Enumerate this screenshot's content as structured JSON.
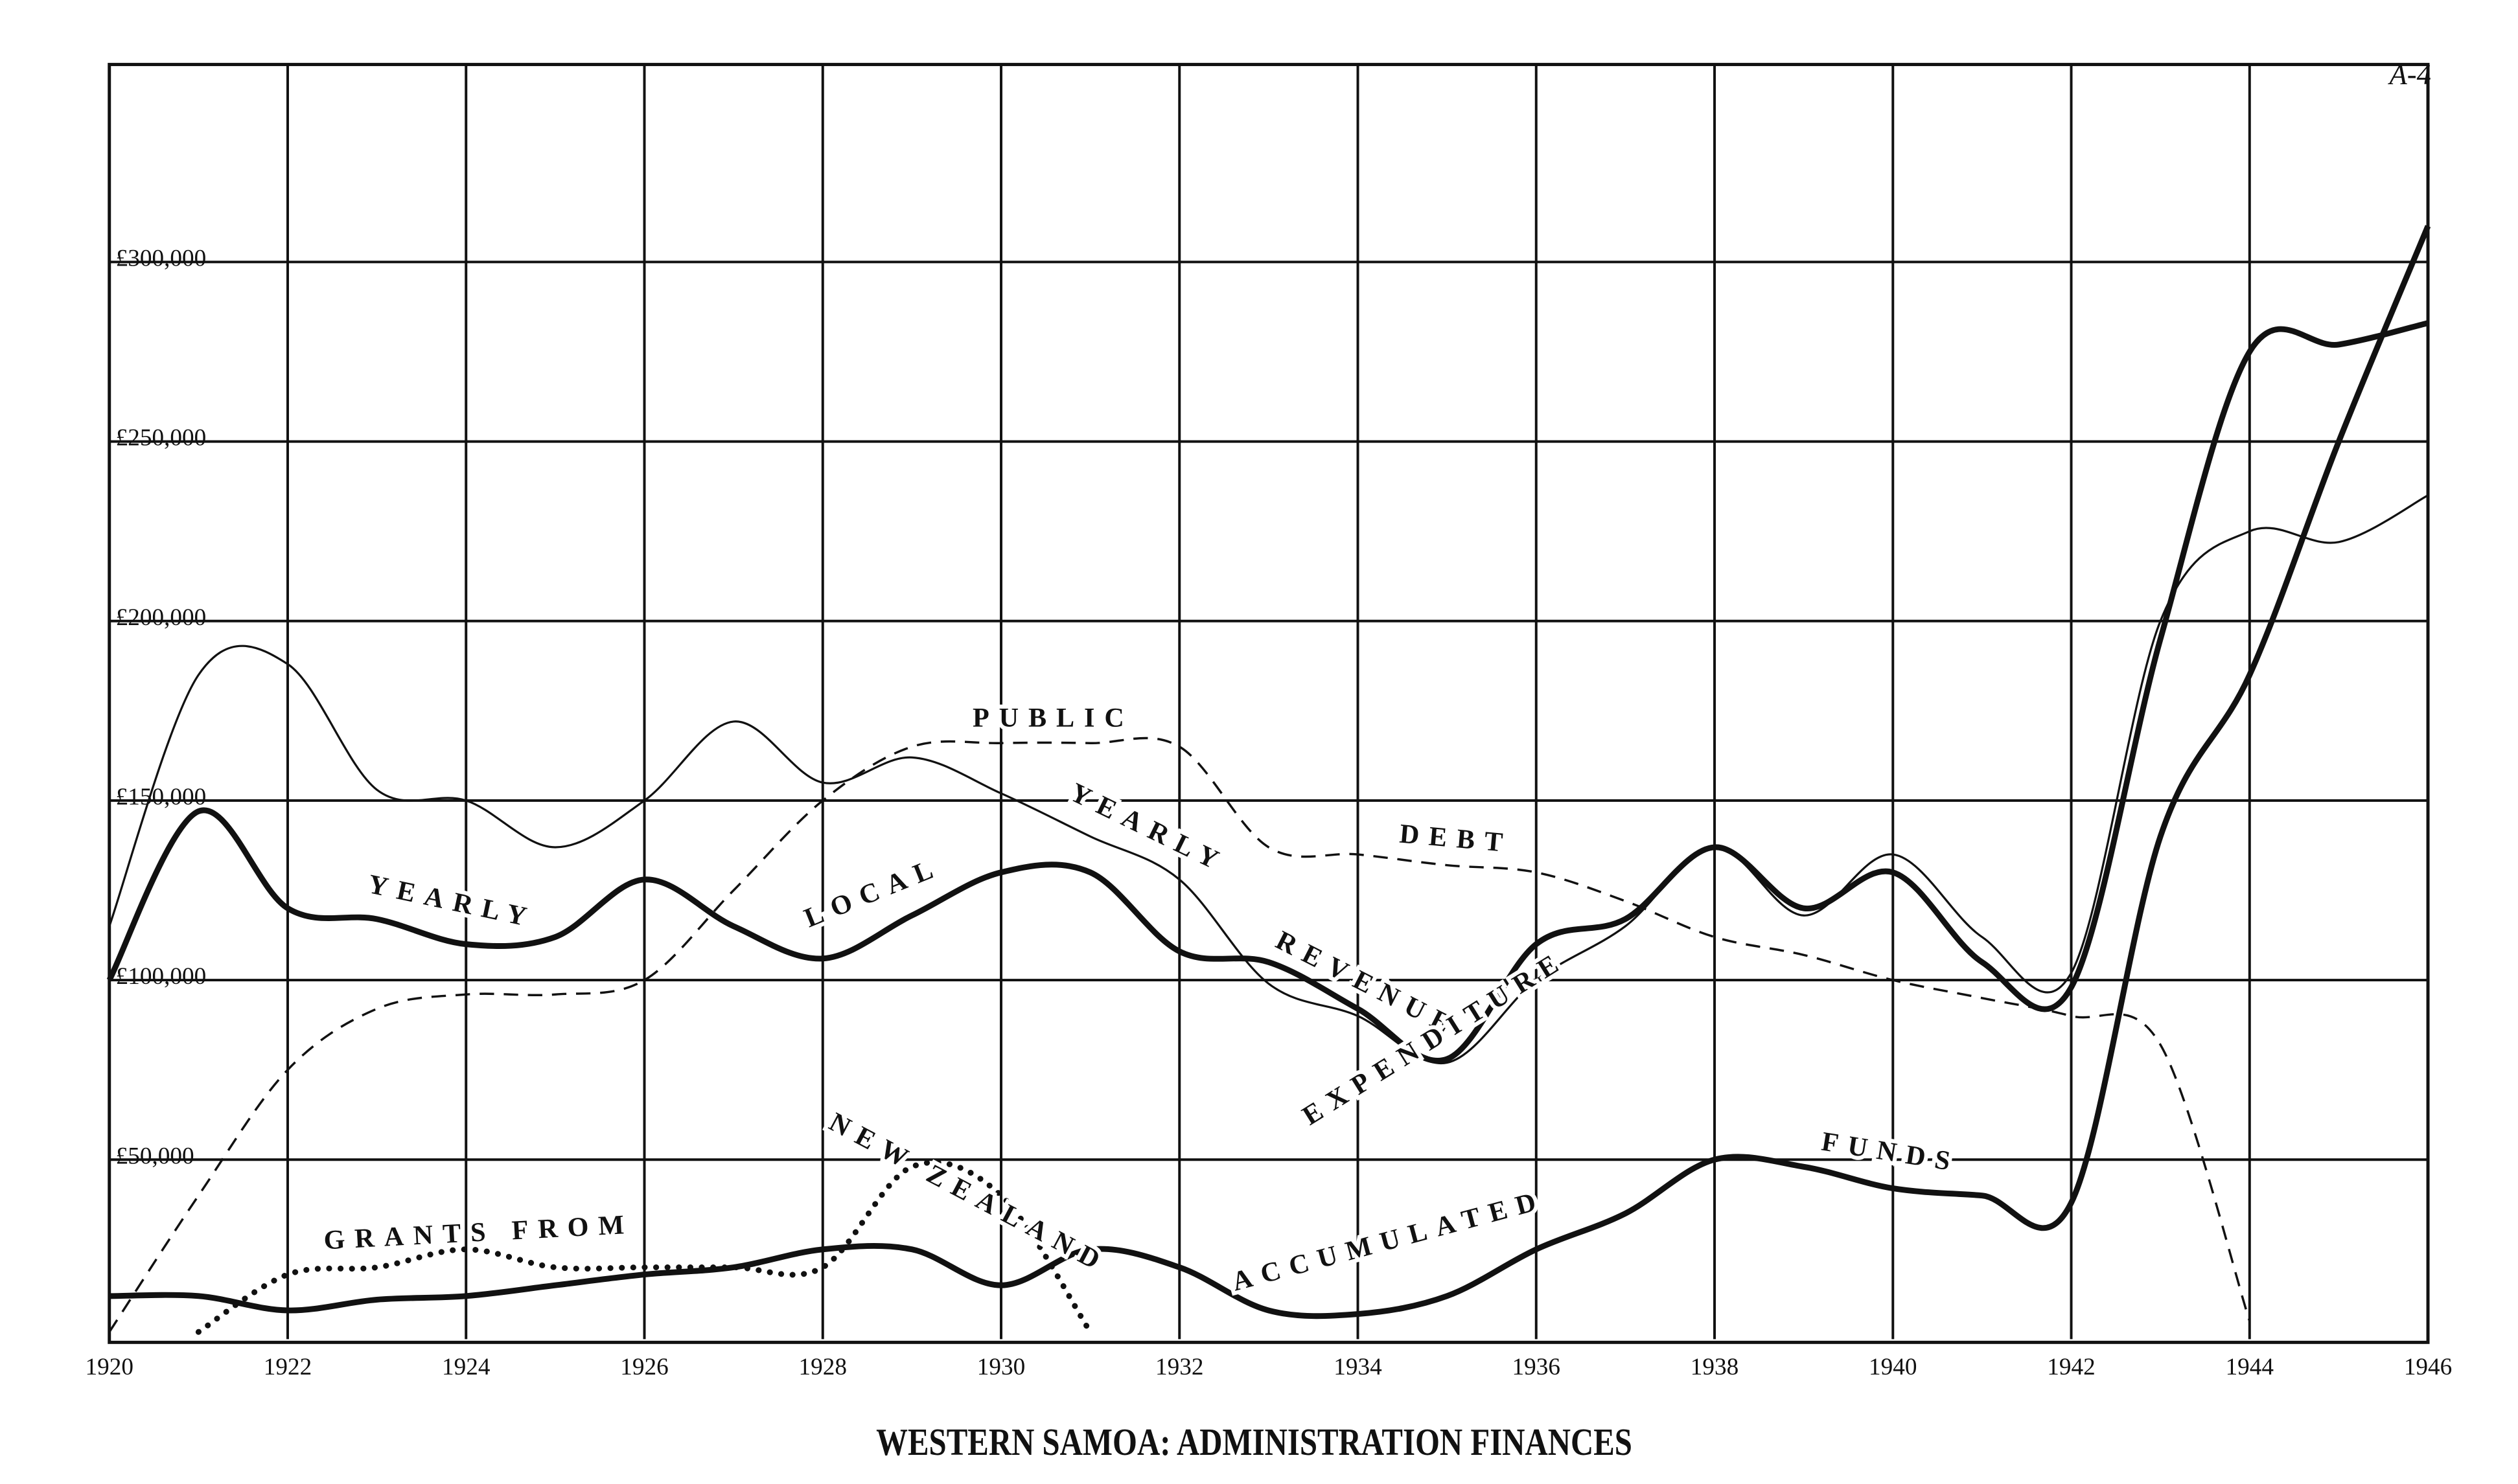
{
  "page_label": "A-4",
  "chart_data": {
    "type": "line",
    "title": "WESTERN SAMOA: ADMINISTRATION FINANCES",
    "x": [
      1920,
      1921,
      1922,
      1923,
      1924,
      1925,
      1926,
      1927,
      1928,
      1929,
      1930,
      1931,
      1932,
      1933,
      1934,
      1935,
      1936,
      1937,
      1938,
      1939,
      1940,
      1941,
      1942,
      1943,
      1944,
      1945,
      1946
    ],
    "xlim": [
      1920,
      1946
    ],
    "xticks": [
      1920,
      1922,
      1924,
      1926,
      1928,
      1930,
      1932,
      1934,
      1936,
      1938,
      1940,
      1942,
      1944,
      1946
    ],
    "ylim": [
      0,
      355000
    ],
    "yticks": [
      {
        "value": 50000,
        "label": "£50,000"
      },
      {
        "value": 100000,
        "label": "£100,000"
      },
      {
        "value": 150000,
        "label": "£150,000"
      },
      {
        "value": 200000,
        "label": "£200,000"
      },
      {
        "value": 250000,
        "label": "£250,000"
      },
      {
        "value": 300000,
        "label": "£300,000"
      }
    ],
    "grid": true,
    "series": [
      {
        "color": "#111111",
        "style": "thin",
        "values": [
          115000,
          185000,
          188000,
          153000,
          150000,
          137000,
          150000,
          172000,
          155000,
          162000,
          152000,
          140000,
          128000,
          99000,
          90000,
          77000,
          100000,
          115000,
          137000,
          118000,
          135000,
          112000,
          102000,
          200000,
          225000,
          222000,
          235000
        ]
      },
      {
        "color": "#111111",
        "style": "thick",
        "values": [
          100000,
          147000,
          120000,
          117000,
          110000,
          112000,
          128000,
          115000,
          106000,
          118000,
          130000,
          130000,
          108000,
          105000,
          92000,
          78000,
          110000,
          117000,
          137000,
          120000,
          130000,
          105000,
          98000,
          195000,
          275000,
          277000,
          283000
        ]
      },
      {
        "color": "#111111",
        "style": "dashed",
        "values": [
          2000,
          40000,
          75000,
          92000,
          96000,
          96000,
          100000,
          125000,
          150000,
          165000,
          166000,
          166000,
          165000,
          137000,
          135000,
          132000,
          130000,
          122000,
          112000,
          107000,
          100000,
          95000,
          90000,
          82000,
          5000,
          null,
          null
        ]
      },
      {
        "color": "#111111",
        "style": "dotted",
        "values": [
          null,
          2000,
          18000,
          20000,
          25000,
          20000,
          20000,
          20000,
          20000,
          48000,
          40000,
          2000,
          null,
          null,
          null,
          null,
          null,
          null,
          null,
          null,
          null,
          null,
          null,
          null,
          null,
          null,
          null
        ]
      },
      {
        "color": "#111111",
        "style": "thick",
        "values": [
          12000,
          12000,
          8000,
          11000,
          12000,
          15000,
          18000,
          20000,
          25000,
          25000,
          15000,
          25000,
          20000,
          8000,
          7000,
          12000,
          25000,
          35000,
          50000,
          48000,
          42000,
          40000,
          38000,
          140000,
          185000,
          250000,
          310000
        ]
      }
    ],
    "annotations": [
      "PUBLIC",
      "DEBT",
      "YEARLY",
      "LOCAL",
      "YEARLY",
      "REVENUE",
      "EXPENDITURE",
      "GRANTS FROM",
      "NEW ZEALAND",
      "ACCUMULATED",
      "FUNDS"
    ]
  }
}
